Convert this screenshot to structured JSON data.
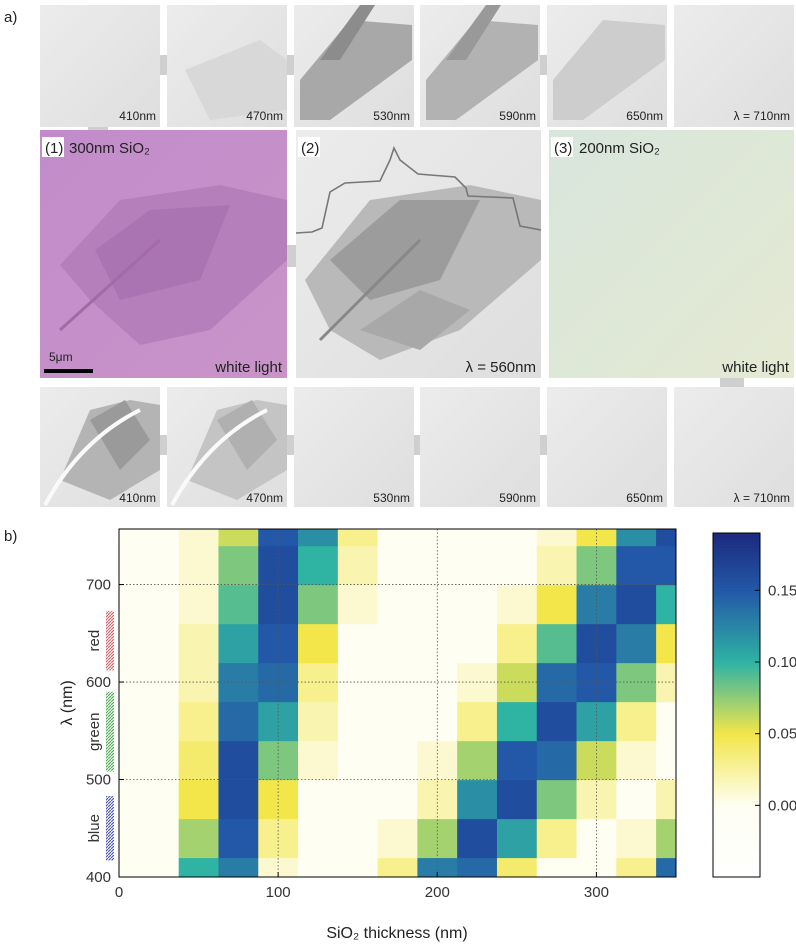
{
  "panel_labels": [
    "a)",
    "b)"
  ],
  "panel_a": {
    "top_row": [
      "410nm",
      "470nm",
      "530nm",
      "590nm",
      "650nm",
      "λ = 710nm"
    ],
    "middle": [
      {
        "index": "(1)",
        "title": "300nm SiO₂",
        "caption": "white light",
        "scale_bar": "5μm"
      },
      {
        "index": "(2)",
        "caption": "λ = 560nm"
      },
      {
        "index": "(3)",
        "title": "200nm SiO₂",
        "caption": "white light"
      }
    ],
    "bottom_row": [
      "410nm",
      "470nm",
      "530nm",
      "590nm",
      "650nm",
      "λ = 710nm"
    ]
  },
  "chart_data": {
    "type": "heatmap",
    "xlabel": "SiO₂ thickness (nm)",
    "ylabel": "λ (nm)",
    "x": [
      0,
      25,
      50,
      75,
      100,
      125,
      150,
      175,
      200,
      225,
      250,
      275,
      300,
      325,
      350
    ],
    "y": [
      400,
      440,
      480,
      520,
      560,
      600,
      640,
      680,
      720,
      760
    ],
    "z": [
      [
        0,
        0,
        0.1,
        0.13,
        0.01,
        0,
        0,
        0.03,
        0.13,
        0.14,
        0.04,
        0,
        0,
        0.03,
        0.14
      ],
      [
        0,
        0,
        0.07,
        0.15,
        0.03,
        0,
        0,
        0.01,
        0.07,
        0.16,
        0.11,
        0.03,
        0,
        0.01,
        0.07
      ],
      [
        0,
        0,
        0.05,
        0.16,
        0.05,
        0,
        0,
        0,
        0.02,
        0.12,
        0.16,
        0.08,
        0.02,
        0,
        0.02
      ],
      [
        0,
        0,
        0.04,
        0.16,
        0.08,
        0.01,
        0,
        0,
        0.01,
        0.07,
        0.15,
        0.14,
        0.06,
        0.01,
        0
      ],
      [
        0,
        0,
        0.03,
        0.14,
        0.11,
        0.02,
        0,
        0,
        0,
        0.03,
        0.1,
        0.16,
        0.11,
        0.03,
        0
      ],
      [
        0,
        0,
        0.02,
        0.13,
        0.14,
        0.03,
        0,
        0,
        0,
        0.01,
        0.06,
        0.14,
        0.15,
        0.08,
        0.02
      ],
      [
        0,
        0,
        0.02,
        0.11,
        0.15,
        0.05,
        0,
        0,
        0,
        0,
        0.03,
        0.09,
        0.16,
        0.13,
        0.05
      ],
      [
        0,
        0,
        0.01,
        0.09,
        0.16,
        0.08,
        0.01,
        0,
        0,
        0,
        0.01,
        0.05,
        0.13,
        0.16,
        0.1
      ],
      [
        0,
        0,
        0.01,
        0.08,
        0.16,
        0.1,
        0.02,
        0,
        0,
        0,
        0,
        0.02,
        0.08,
        0.15,
        0.15
      ],
      [
        0,
        0,
        0.01,
        0.06,
        0.15,
        0.12,
        0.03,
        0,
        0,
        0,
        0,
        0.01,
        0.05,
        0.12,
        0.16
      ]
    ],
    "xlim": [
      0,
      350
    ],
    "ylim": [
      400,
      757
    ],
    "xticks": [
      0,
      100,
      200,
      300
    ],
    "yticks": [
      400,
      500,
      600,
      700
    ],
    "grid": true,
    "colorbar": {
      "lim": [
        -0.05,
        0.19
      ],
      "ticks": [
        {
          "value": 0,
          "label": "0.00"
        },
        0.05,
        {
          "value": 0.1,
          "label": "0.10"
        },
        0.15
      ]
    },
    "colormap": [
      {
        "value": -0.05,
        "color": "#ffffff"
      },
      {
        "value": 0,
        "color": "#fefef2"
      },
      {
        "value": 0.05,
        "color": "#f2e64a"
      },
      {
        "value": 0.1,
        "color": "#2fb3a3"
      },
      {
        "value": 0.15,
        "color": "#2358a8"
      },
      {
        "value": 0.19,
        "color": "#1b2a7e"
      }
    ],
    "bands": [
      {
        "label": "red",
        "range": [
          612,
          673
        ],
        "color": "#e06060"
      },
      {
        "label": "green",
        "range": [
          508,
          590
        ],
        "color": "#4cb050"
      },
      {
        "label": "blue",
        "range": [
          417,
          483
        ],
        "color": "#4a58b8"
      }
    ]
  }
}
